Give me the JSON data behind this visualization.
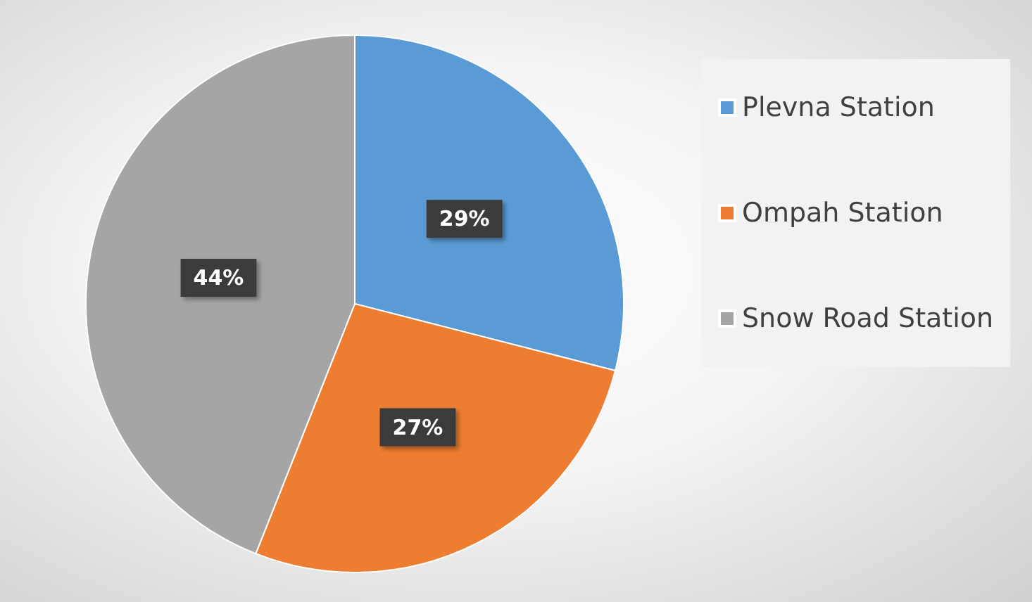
{
  "chart_data": {
    "type": "pie",
    "categories": [
      "Plevna Station",
      "Ompah Station",
      "Snow Road Station"
    ],
    "values": [
      29,
      27,
      44
    ],
    "colors": [
      "#5b9bd5",
      "#ed7d31",
      "#a5a5a5"
    ],
    "value_labels": [
      "29%",
      "27%",
      "44%"
    ],
    "legend": "right"
  }
}
